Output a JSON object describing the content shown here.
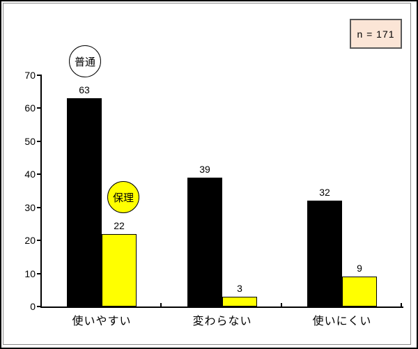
{
  "annotation_box": {
    "label": "n = 171",
    "fill": "#fbe5d6",
    "border_color": "#595959"
  },
  "chart_data": {
    "type": "bar",
    "categories": [
      "使いやすい",
      "変わらない",
      "使いにくい"
    ],
    "series": [
      {
        "name": "普通",
        "color": "#000000",
        "marker_fill": "#ffffff",
        "values": [
          63,
          39,
          32
        ]
      },
      {
        "name": "保理",
        "color": "#ffff00",
        "marker_fill": "#ffff00",
        "values": [
          22,
          3,
          9
        ]
      }
    ],
    "title": "",
    "xlabel": "",
    "ylabel": "",
    "ylim": [
      0,
      70
    ],
    "yticks": [
      0,
      10,
      20,
      30,
      40,
      50,
      60,
      70
    ],
    "grid": false,
    "legend_position": "floating-circles-above-first-bars",
    "annotation": "n = 171",
    "data_labels": true
  }
}
